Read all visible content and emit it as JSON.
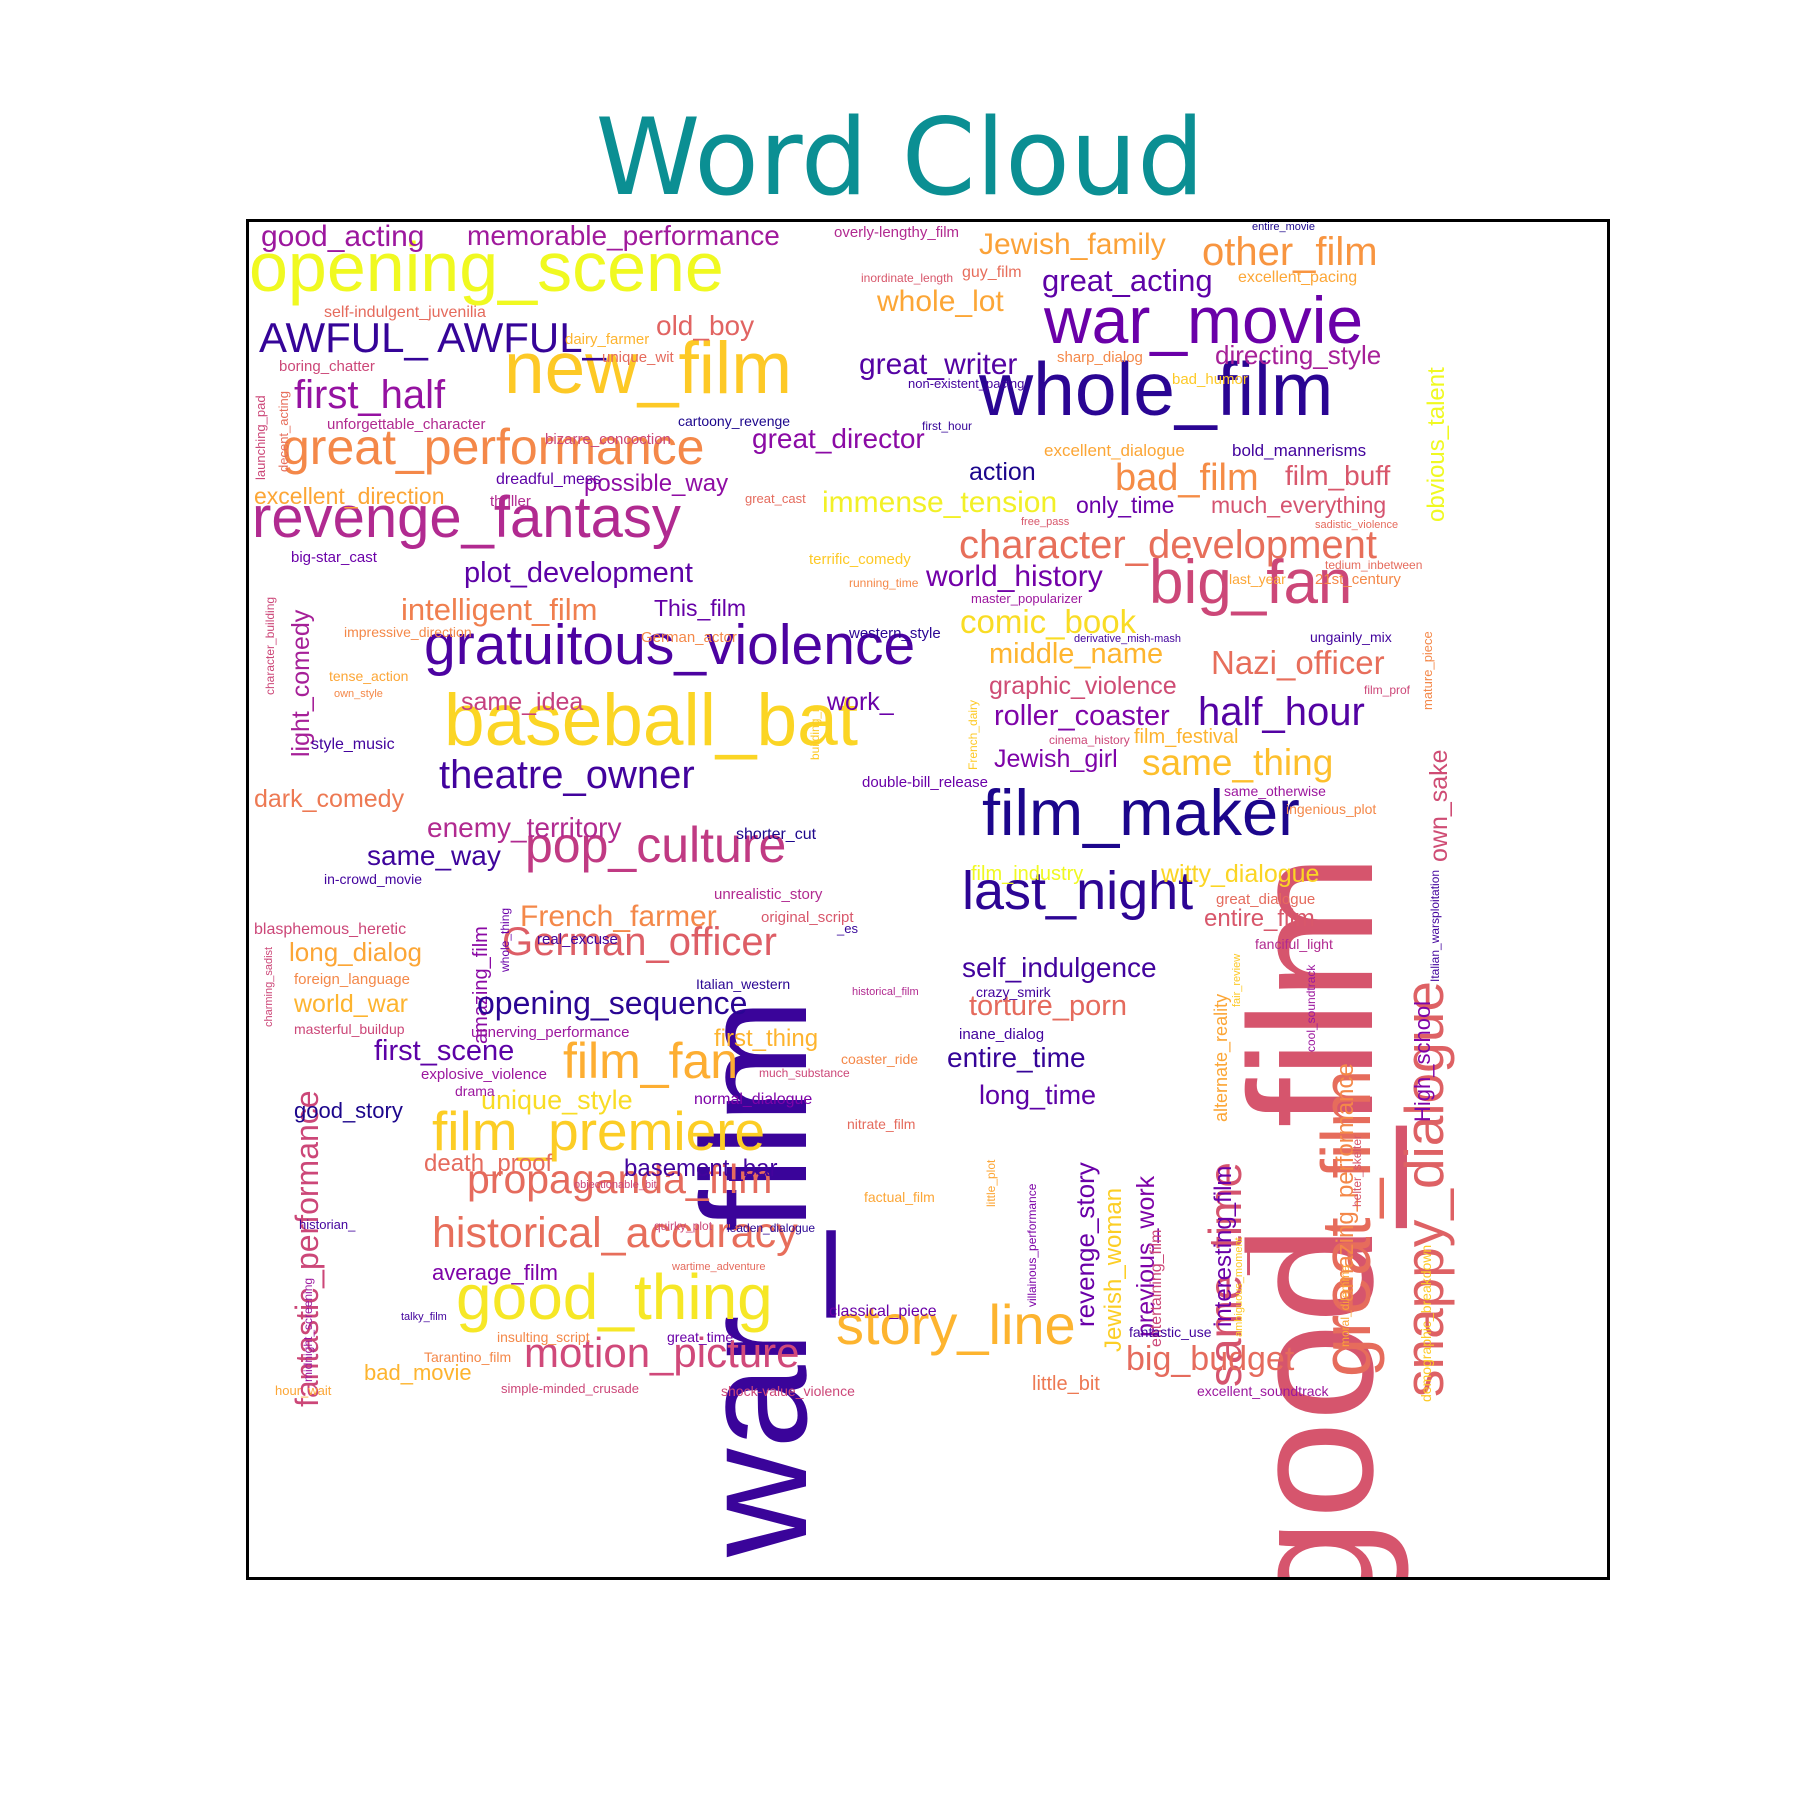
{
  "title": "Word Cloud",
  "cloud": {
    "palette": "plasma",
    "words": [
      {
        "text": "good_film",
        "color": "#d6556d"
      },
      {
        "text": "war_film",
        "color": "#3a049a"
      },
      {
        "text": "opening_scene",
        "color": "#f0f921"
      },
      {
        "text": "new_film",
        "color": "#fdc926"
      },
      {
        "text": "whole_film",
        "color": "#2a0593"
      },
      {
        "text": "war_movie",
        "color": "#6a00a8"
      },
      {
        "text": "revenge_fantasy",
        "color": "#b12a90"
      },
      {
        "text": "baseball_bat",
        "color": "#fbd524"
      },
      {
        "text": "gratuitous_violence",
        "color": "#4c02a1"
      },
      {
        "text": "film_maker",
        "color": "#1c068c"
      },
      {
        "text": "great_film",
        "color": "#e66c5c"
      },
      {
        "text": "snappy_dialogue",
        "color": "#de6164"
      },
      {
        "text": "big_fan",
        "color": "#cc4778"
      },
      {
        "text": "great_performance",
        "color": "#f48849"
      },
      {
        "text": "pop_culture",
        "color": "#c03a83"
      },
      {
        "text": "film_premiere",
        "color": "#fccd25"
      },
      {
        "text": "good_thing",
        "color": "#f6e726"
      },
      {
        "text": "story_line",
        "color": "#fdb42f"
      },
      {
        "text": "last_night",
        "color": "#2d0594"
      },
      {
        "text": "same_time",
        "color": "#d5546e"
      },
      {
        "text": "character_development",
        "color": "#e76f5a"
      },
      {
        "text": "AWFUL_ AWFUL_",
        "color": "#350498"
      },
      {
        "text": "film_fan",
        "color": "#fdae32"
      },
      {
        "text": "historical_accuracy",
        "color": "#e76e5b"
      },
      {
        "text": "propaganda_film",
        "color": "#e56b5d"
      },
      {
        "text": "motion_picture",
        "color": "#d0497a"
      },
      {
        "text": "German_officer",
        "color": "#dd5e66"
      },
      {
        "text": "theatre_owner",
        "color": "#42039d"
      },
      {
        "text": "fantastic_performance",
        "color": "#cc4778"
      },
      {
        "text": "good_acting",
        "color": "#9c179e"
      },
      {
        "text": "memorable_performance",
        "color": "#a01a9c"
      },
      {
        "text": "other_film",
        "color": "#f89540"
      },
      {
        "text": "Jewish_family",
        "color": "#fba238"
      },
      {
        "text": "great_acting",
        "color": "#5d01a6"
      },
      {
        "text": "whole_lot",
        "color": "#fca636"
      },
      {
        "text": "directing_style",
        "color": "#a62098"
      },
      {
        "text": "great_writer",
        "color": "#5402a3"
      },
      {
        "text": "old_boy",
        "color": "#e16462"
      },
      {
        "text": "first_half",
        "color": "#9512a1"
      },
      {
        "text": "great_director",
        "color": "#8b0aa5"
      },
      {
        "text": "bad_film",
        "color": "#f58c46"
      },
      {
        "text": "film_buff",
        "color": "#d8576b"
      },
      {
        "text": "immense_tension",
        "color": "#f2f027"
      },
      {
        "text": "only_time",
        "color": "#6900a8"
      },
      {
        "text": "much_everything",
        "color": "#d5536f"
      },
      {
        "text": "obvious_talent",
        "color": "#f0f921"
      },
      {
        "text": "action",
        "color": "#1c068c"
      },
      {
        "text": "possible_way",
        "color": "#8f0da4"
      },
      {
        "text": "excellent_direction",
        "color": "#fca636"
      },
      {
        "text": "plot_development",
        "color": "#5c01a6"
      },
      {
        "text": "intelligent_film",
        "color": "#f07f4f"
      },
      {
        "text": "This_film",
        "color": "#6500a7"
      },
      {
        "text": "world_history",
        "color": "#7201a8"
      },
      {
        "text": "comic_book",
        "color": "#f9dc24"
      },
      {
        "text": "middle_name",
        "color": "#feb52f"
      },
      {
        "text": "Nazi_officer",
        "color": "#e76e5b"
      },
      {
        "text": "graphic_violence",
        "color": "#cf4c74"
      },
      {
        "text": "roller_coaster",
        "color": "#7e03a8"
      },
      {
        "text": "half_hour",
        "color": "#5302a3"
      },
      {
        "text": "Jewish_girl",
        "color": "#7e03a8"
      },
      {
        "text": "same_thing",
        "color": "#fdbf2c"
      },
      {
        "text": "same_level",
        "color": "#e56a5d"
      },
      {
        "text": "own_sake",
        "color": "#cf4c74"
      },
      {
        "text": "light_comedy",
        "color": "#a62098"
      },
      {
        "text": "same_idea",
        "color": "#c5407e"
      },
      {
        "text": "work_",
        "color": "#6a00a8"
      },
      {
        "text": "dark_comedy",
        "color": "#ed7953"
      },
      {
        "text": "enemy_territory",
        "color": "#b12a90"
      },
      {
        "text": "same_way",
        "color": "#3e049c"
      },
      {
        "text": "French_farmer",
        "color": "#f48849"
      },
      {
        "text": "amazing_film",
        "color": "#8b0aa5"
      },
      {
        "text": "long_dialog",
        "color": "#fca636"
      },
      {
        "text": "world_war",
        "color": "#fdb42f"
      },
      {
        "text": "opening_sequence",
        "color": "#2a0593"
      },
      {
        "text": "first_scene",
        "color": "#5c01a6"
      },
      {
        "text": "unique_style",
        "color": "#f9dc24"
      },
      {
        "text": "good_story",
        "color": "#1c068c"
      },
      {
        "text": "death_proof",
        "color": "#e56b5d"
      },
      {
        "text": "basement_bar",
        "color": "#42039d"
      },
      {
        "text": "average_film",
        "color": "#7e03a8"
      },
      {
        "text": "bad_movie",
        "color": "#fdb42f"
      },
      {
        "text": "film_industry",
        "color": "#f0f921"
      },
      {
        "text": "witty_dialogue",
        "color": "#fbd524"
      },
      {
        "text": "entire_film",
        "color": "#d8576b"
      },
      {
        "text": "self_indulgence",
        "color": "#42039d"
      },
      {
        "text": "torture_porn",
        "color": "#e56b5d"
      },
      {
        "text": "entire_time",
        "color": "#350498"
      },
      {
        "text": "first_thing",
        "color": "#fdb42f"
      },
      {
        "text": "long_time",
        "color": "#5c01a6"
      },
      {
        "text": "revenge_story",
        "color": "#6a00a8"
      },
      {
        "text": "Jewish_woman",
        "color": "#fcce25"
      },
      {
        "text": "previous_work",
        "color": "#7e03a8"
      },
      {
        "text": "interesting_film",
        "color": "#6a00a8"
      },
      {
        "text": "amazing_performance",
        "color": "#f48849"
      },
      {
        "text": "High_school",
        "color": "#7e03a8"
      },
      {
        "text": "big_budget",
        "color": "#e56b5d"
      },
      {
        "text": "little_bit",
        "color": "#ed7953"
      },
      {
        "text": "alternate_reality",
        "color": "#fca636"
      },
      {
        "text": "entertaining_film",
        "color": "#cc4778"
      },
      {
        "text": "film_festival",
        "color": "#fdb42f"
      },
      {
        "text": "overly-lengthy_film",
        "color": "#b12a90"
      },
      {
        "text": "entire_movie",
        "color": "#1c068c"
      },
      {
        "text": "inordinate_length",
        "color": "#d8576b"
      },
      {
        "text": "guy_film",
        "color": "#e76e5b"
      },
      {
        "text": "excellent_pacing",
        "color": "#fca636"
      },
      {
        "text": "self-indulgent_juvenilia",
        "color": "#e56b5d"
      },
      {
        "text": "dairy_farmer",
        "color": "#fdb42f"
      },
      {
        "text": "unique_wit",
        "color": "#e56b5d"
      },
      {
        "text": "boring_chatter",
        "color": "#cc4778"
      },
      {
        "text": "sharp_dialog",
        "color": "#f48849"
      },
      {
        "text": "non-existent_pacing",
        "color": "#42039d"
      },
      {
        "text": "bad_humor",
        "color": "#fdc926"
      },
      {
        "text": "decent_acting",
        "color": "#e76e5b"
      },
      {
        "text": "launching_pad",
        "color": "#cc4778"
      },
      {
        "text": "unforgettable_character",
        "color": "#b12a90"
      },
      {
        "text": "cartoony_revenge",
        "color": "#1c068c"
      },
      {
        "text": "first_hour",
        "color": "#350498"
      },
      {
        "text": "bizarre_concoction",
        "color": "#cc4778"
      },
      {
        "text": "excellent_dialogue",
        "color": "#fca636"
      },
      {
        "text": "bold_mannerisms",
        "color": "#42039d"
      },
      {
        "text": "dreadful_mess",
        "color": "#5c01a6"
      },
      {
        "text": "thriller",
        "color": "#b12a90"
      },
      {
        "text": "great_cast",
        "color": "#e56b5d"
      },
      {
        "text": "free_pass",
        "color": "#d8576b"
      },
      {
        "text": "sadistic_violence",
        "color": "#e56b5d"
      },
      {
        "text": "big-star_cast",
        "color": "#6a00a8"
      },
      {
        "text": "terrific_comedy",
        "color": "#fdc926"
      },
      {
        "text": "running_time",
        "color": "#f48849"
      },
      {
        "text": "tedium_inbetween",
        "color": "#e56b5d"
      },
      {
        "text": "last_year",
        "color": "#fca636"
      },
      {
        "text": "21st_century",
        "color": "#f48849"
      },
      {
        "text": "master_popularizer",
        "color": "#9c179e"
      },
      {
        "text": "character_building",
        "color": "#cc4778"
      },
      {
        "text": "impressive_direction",
        "color": "#f48849"
      },
      {
        "text": "German_actor",
        "color": "#f48849"
      },
      {
        "text": "western_style",
        "color": "#2a0593"
      },
      {
        "text": "derivative_mish-mash",
        "color": "#42039d"
      },
      {
        "text": "ungainly_mix",
        "color": "#42039d"
      },
      {
        "text": "mature_piece",
        "color": "#f48849"
      },
      {
        "text": "tense_action",
        "color": "#fca636"
      },
      {
        "text": "own_style",
        "color": "#f48849"
      },
      {
        "text": "film_prof",
        "color": "#cc4778"
      },
      {
        "text": "building_i",
        "color": "#fdc926"
      },
      {
        "text": "French_dairy",
        "color": "#fdc926"
      },
      {
        "text": "style_music",
        "color": "#42039d"
      },
      {
        "text": "cinema_history",
        "color": "#cc4778"
      },
      {
        "text": "double-bill_release",
        "color": "#6a00a8"
      },
      {
        "text": "same_otherwise",
        "color": "#9c179e"
      },
      {
        "text": "ingenious_plot",
        "color": "#f48849"
      },
      {
        "text": "shorter_cut",
        "color": "#1c068c"
      },
      {
        "text": "in-crowd_movie",
        "color": "#42039d"
      },
      {
        "text": "unrealistic_story",
        "color": "#b12a90"
      },
      {
        "text": "great_dialogue",
        "color": "#e56b5d"
      },
      {
        "text": "Italian_warsploitation",
        "color": "#42039d"
      },
      {
        "text": "whole_thing",
        "color": "#6a00a8"
      },
      {
        "text": "original_script",
        "color": "#d8576b"
      },
      {
        "text": "_es",
        "color": "#350498"
      },
      {
        "text": "blasphemous_heretic",
        "color": "#cc4778"
      },
      {
        "text": "real_excuse",
        "color": "#42039d"
      },
      {
        "text": "fanciful_light",
        "color": "#b12a90"
      },
      {
        "text": "charming_sadist",
        "color": "#cc4778"
      },
      {
        "text": "foreign_language",
        "color": "#f48849"
      },
      {
        "text": "Italian_western",
        "color": "#2a0593"
      },
      {
        "text": "historical_film",
        "color": "#b12a90"
      },
      {
        "text": "crazy_smirk",
        "color": "#42039d"
      },
      {
        "text": "fair_review",
        "color": "#fdc926"
      },
      {
        "text": "masterful_buildup",
        "color": "#cc4778"
      },
      {
        "text": "unnerving_performance",
        "color": "#9c179e"
      },
      {
        "text": "inane_dialog",
        "color": "#42039d"
      },
      {
        "text": "cool_soundtrack",
        "color": "#9c179e"
      },
      {
        "text": "explosive_violence",
        "color": "#9c179e"
      },
      {
        "text": "coaster_ride",
        "color": "#f48849"
      },
      {
        "text": "much_substance",
        "color": "#cc4778"
      },
      {
        "text": "drama",
        "color": "#9c179e"
      },
      {
        "text": "normal_dialogue",
        "color": "#7e03a8"
      },
      {
        "text": "nitrate_film",
        "color": "#e56b5d"
      },
      {
        "text": "little_plot",
        "color": "#fca636"
      },
      {
        "text": "objectionable_bit",
        "color": "#cc4778"
      },
      {
        "text": "factual_film",
        "color": "#fca636"
      },
      {
        "text": "villainous_performance",
        "color": "#7e03a8"
      },
      {
        "text": "helter_skelter",
        "color": "#d8576b"
      },
      {
        "text": "historian_",
        "color": "#42039d"
      },
      {
        "text": "quirky_plot",
        "color": "#cc4778"
      },
      {
        "text": "leaden_dialogue",
        "color": "#2a0593"
      },
      {
        "text": "ambiguous_moment",
        "color": "#fdc926"
      },
      {
        "text": "moral_dilemma",
        "color": "#fca636"
      },
      {
        "text": "demographic_breakdown",
        "color": "#fdc926"
      },
      {
        "text": "midnight_screening",
        "color": "#9c179e"
      },
      {
        "text": "wartime_adventure",
        "color": "#e56b5d"
      },
      {
        "text": "talky_film",
        "color": "#42039d"
      },
      {
        "text": "classical_piece",
        "color": "#6a00a8"
      },
      {
        "text": "insulting_script",
        "color": "#f48849"
      },
      {
        "text": "great_time",
        "color": "#6a00a8"
      },
      {
        "text": "fantastic_use",
        "color": "#42039d"
      },
      {
        "text": "Tarantino_film",
        "color": "#f48849"
      },
      {
        "text": "hour_wait",
        "color": "#fca636"
      },
      {
        "text": "simple-minded_crusade",
        "color": "#cc4778"
      },
      {
        "text": "shock-value_violence",
        "color": "#cc4778"
      },
      {
        "text": "excellent_soundtrack",
        "color": "#9c179e"
      }
    ]
  }
}
